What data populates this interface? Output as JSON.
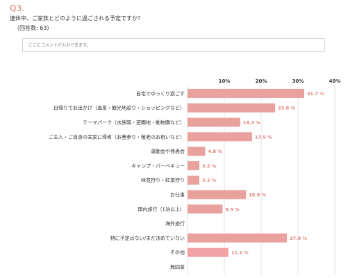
{
  "question": {
    "number": "Q3.",
    "text": "連休中、ご家族とどのように過ごされる予定ですか？",
    "answer_count": "（回答数: 63）"
  },
  "comment": {
    "placeholder": "ここにコメントが入力できます。"
  },
  "colors": {
    "bar": "#e8a19c",
    "bar_highlight": "#f2a2a5",
    "accent_text": "#e07b73",
    "grid": "#e0e0e0"
  },
  "chart_data": {
    "type": "bar",
    "orientation": "horizontal",
    "categories": [
      "自宅でゆっくり過ごす",
      "日帰りでお出かけ（温泉・観光地巡り・ショッピングなど）",
      "テーマパーク（水族館・遊園地・動物園など）",
      "ご主人・ご自身の実家に帰省（お墓参り・敬老のお祝いなど）",
      "運動会や発表会",
      "キャンプ・バーベキュー",
      "味覚狩り・紅葉狩り",
      "お仕事",
      "国内旅行（1泊以上）",
      "海外旅行",
      "特に予定はない/まだ決めていない",
      "その他",
      "無回答"
    ],
    "values": [
      31.7,
      23.8,
      14.3,
      17.5,
      4.8,
      3.2,
      3.2,
      15.9,
      9.5,
      null,
      27.0,
      11.1,
      null
    ],
    "value_labels": [
      "31.7 %",
      "23.8 %",
      "14.3 %",
      "17.5 %",
      "4.8 %",
      "3.2 %",
      "3.2 %",
      "15.9 %",
      "9.5 %",
      "",
      "27.0 %",
      "11.1 %",
      ""
    ],
    "highlight_index": 11,
    "xlim": [
      0,
      40
    ],
    "ticks": [
      10,
      20,
      30,
      40
    ],
    "tick_labels": [
      "10%",
      "20%",
      "30%",
      "40%"
    ],
    "grid": true
  }
}
